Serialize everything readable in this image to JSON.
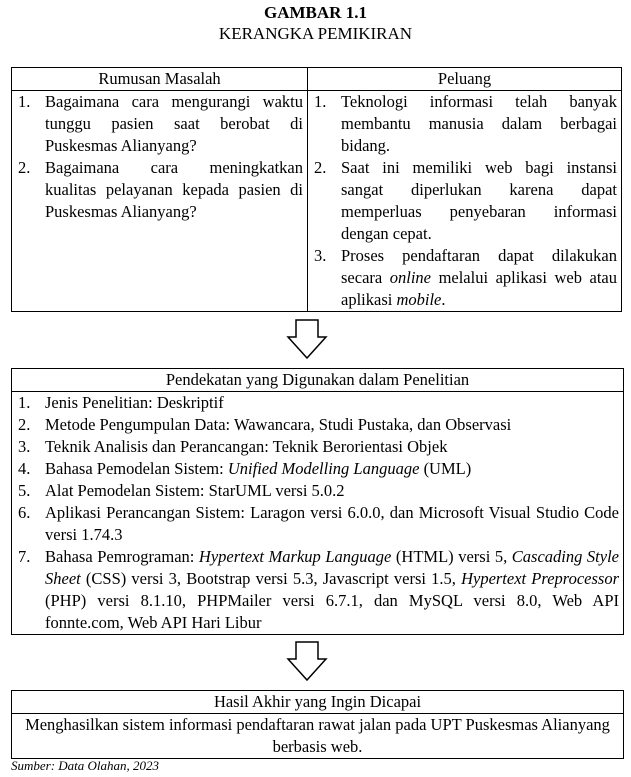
{
  "figure": {
    "label": "GAMBAR 1.1",
    "title": "KERANGKA PEMIKIRAN"
  },
  "box1": {
    "left_header": "Rumusan Masalah",
    "right_header": "Peluang",
    "left_items": [
      {
        "num": "1.",
        "text": "Bagaimana cara mengurangi waktu tunggu pasien saat berobat di Puskesmas Alianyang?"
      },
      {
        "num": "2.",
        "text": "Bagaimana cara meningkatkan kualitas pelayanan kepada pasien di Puskesmas Alianyang?"
      }
    ],
    "right_items": [
      {
        "num": "1.",
        "text": "Teknologi informasi telah banyak membantu manusia dalam berbagai bidang."
      },
      {
        "num": "2.",
        "text": "Saat ini memiliki web bagi instansi sangat diperlukan karena dapat memperluas penyebaran informasi dengan cepat."
      },
      {
        "num": "3.",
        "t1": "Proses pendaftaran dapat dilakukan secara ",
        "t2": "online",
        "t3": " melalui aplikasi web atau aplikasi ",
        "t4": "mobile",
        "t5": "."
      }
    ]
  },
  "box2": {
    "header": "Pendekatan yang Digunakan dalam Penelitian",
    "items": [
      {
        "num": "1.",
        "text": "Jenis Penelitian: Deskriptif"
      },
      {
        "num": "2.",
        "text": "Metode Pengumpulan Data: Wawancara, Studi Pustaka, dan Observasi"
      },
      {
        "num": "3.",
        "text": "Teknik Analisis dan Perancangan: Teknik Berorientasi Objek"
      },
      {
        "num": "4.",
        "t1": "Bahasa Pemodelan Sistem: ",
        "t2": "Unified Modelling Language",
        "t3": " (UML)"
      },
      {
        "num": "5.",
        "text": "Alat Pemodelan Sistem: StarUML versi 5.0.2"
      },
      {
        "num": "6.",
        "text": "Aplikasi Perancangan Sistem: Laragon versi 6.0.0, dan Microsoft Visual Studio Code versi 1.74.3"
      },
      {
        "num": "7.",
        "t1": "Bahasa Pemrograman: ",
        "t2": "Hypertext Markup Language",
        "t3": " (HTML) versi 5, ",
        "t4": "Cascading Style Sheet",
        "t5": " (CSS) versi 3, Bootstrap versi 5.3, Javascript versi 1.5, ",
        "t6": "Hypertext Preprocessor",
        "t7": " (PHP) versi 8.1.10, PHPMailer versi 6.7.1, dan MySQL versi 8.0, Web API fonnte.com, Web API Hari Libur"
      }
    ]
  },
  "box3": {
    "header": "Hasil Akhir yang Ingin Dicapai",
    "text": "Menghasilkan sistem informasi pendaftaran rawat jalan pada UPT Puskesmas Alianyang berbasis web."
  },
  "source": "Sumber: Data Olahan, 2023"
}
